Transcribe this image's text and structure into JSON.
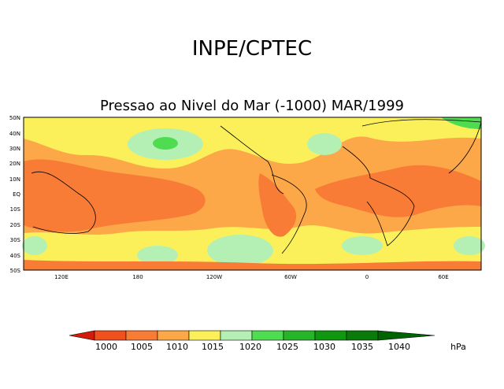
{
  "header": {
    "title": "INPE/CPTEC",
    "subtitle": "Pressao ao Nivel do Mar (-1000) MAR/1999"
  },
  "map": {
    "lat_labels": [
      "50N",
      "40N",
      "30N",
      "20N",
      "10N",
      "EQ",
      "10S",
      "20S",
      "30S",
      "40S",
      "50S"
    ],
    "lon_labels": [
      "120E",
      "180",
      "120W",
      "60W",
      "0",
      "60E"
    ]
  },
  "legend": {
    "levels": [
      "1000",
      "1005",
      "1010",
      "1015",
      "1020",
      "1025",
      "1030",
      "1035",
      "1040"
    ],
    "unit": "hPa",
    "colors": [
      "#d41a0a",
      "#f0501e",
      "#f87c35",
      "#fca848",
      "#fcf05a",
      "#b4f0b4",
      "#50dc50",
      "#28b428",
      "#109610",
      "#006400"
    ]
  },
  "colors": {
    "low": "#f87c35",
    "mid": "#fca848",
    "high": "#fcf05a",
    "very_high": "#b4f0b4",
    "peak": "#50dc50"
  }
}
